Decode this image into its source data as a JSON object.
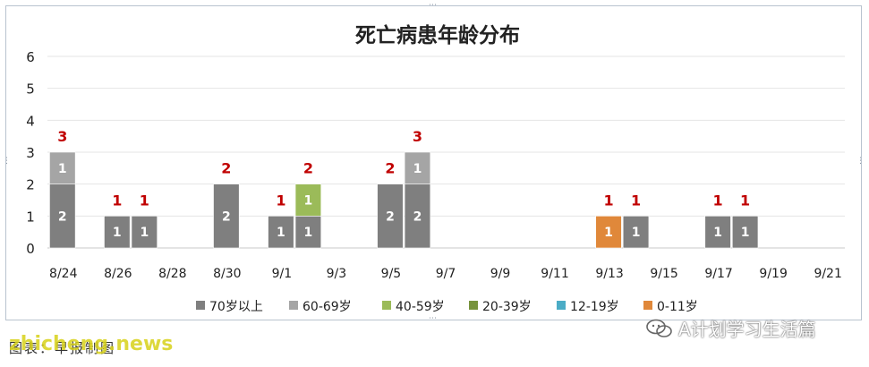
{
  "chart_data": {
    "type": "bar",
    "title": "死亡病患年龄分布",
    "ylim": [
      0,
      6
    ],
    "yticks": [
      0,
      1,
      2,
      3,
      4,
      5,
      6
    ],
    "grid": true,
    "legend_position": "bottom",
    "x_tick_labels": [
      "8/24",
      "8/26",
      "8/28",
      "8/30",
      "9/1",
      "9/3",
      "9/5",
      "9/7",
      "9/9",
      "9/11",
      "9/13",
      "9/15",
      "9/17",
      "9/19",
      "9/21"
    ],
    "categories": [
      "8/24",
      "8/25",
      "8/26",
      "8/27",
      "8/28",
      "8/29",
      "8/30",
      "8/31",
      "9/1",
      "9/2",
      "9/3",
      "9/4",
      "9/5",
      "9/6",
      "9/7",
      "9/8",
      "9/9",
      "9/10",
      "9/11",
      "9/12",
      "9/13",
      "9/14",
      "9/15",
      "9/16",
      "9/17",
      "9/18",
      "9/19",
      "9/20",
      "9/21"
    ],
    "series": [
      {
        "name": "70岁以上",
        "color": "#7f7f7f",
        "values": [
          2,
          0,
          1,
          1,
          0,
          0,
          2,
          0,
          1,
          1,
          0,
          0,
          2,
          2,
          0,
          0,
          0,
          0,
          0,
          0,
          0,
          1,
          0,
          0,
          1,
          1,
          0,
          0,
          0
        ]
      },
      {
        "name": "60-69岁",
        "color": "#a5a5a5",
        "values": [
          1,
          0,
          0,
          0,
          0,
          0,
          0,
          0,
          0,
          0,
          0,
          0,
          0,
          1,
          0,
          0,
          0,
          0,
          0,
          0,
          0,
          0,
          0,
          0,
          0,
          0,
          0,
          0,
          0
        ]
      },
      {
        "name": "40-59岁",
        "color": "#9bbb59",
        "values": [
          0,
          0,
          0,
          0,
          0,
          0,
          0,
          0,
          0,
          1,
          0,
          0,
          0,
          0,
          0,
          0,
          0,
          0,
          0,
          0,
          0,
          0,
          0,
          0,
          0,
          0,
          0,
          0,
          0
        ]
      },
      {
        "name": "20-39岁",
        "color": "#77933c",
        "values": [
          0,
          0,
          0,
          0,
          0,
          0,
          0,
          0,
          0,
          0,
          0,
          0,
          0,
          0,
          0,
          0,
          0,
          0,
          0,
          0,
          0,
          0,
          0,
          0,
          0,
          0,
          0,
          0,
          0
        ]
      },
      {
        "name": "12-19岁",
        "color": "#4bacc6",
        "values": [
          0,
          0,
          0,
          0,
          0,
          0,
          0,
          0,
          0,
          0,
          0,
          0,
          0,
          0,
          0,
          0,
          0,
          0,
          0,
          0,
          0,
          0,
          0,
          0,
          0,
          0,
          0,
          0,
          0
        ]
      },
      {
        "name": "0-11岁",
        "color": "#e0883a",
        "values": [
          0,
          0,
          0,
          0,
          0,
          0,
          0,
          0,
          0,
          0,
          0,
          0,
          0,
          0,
          0,
          0,
          0,
          0,
          0,
          0,
          1,
          0,
          0,
          0,
          0,
          0,
          0,
          0,
          0
        ]
      }
    ],
    "totals_color": "#c00000"
  },
  "footer": {
    "source_label": "图表：早报制图",
    "watermark": "zhicheng.news",
    "wechat_account": "A计划学习生活篇"
  }
}
